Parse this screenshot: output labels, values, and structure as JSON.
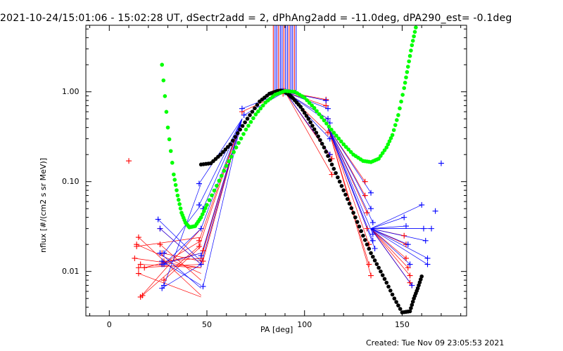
{
  "chart_data": {
    "type": "scatter",
    "title": "2021-10-24/15:01:06 - 15:02:28 UT, dSectr2add = 2, dPhAng2add = -11.0deg, dPA290_est= -0.1deg",
    "xlabel": "PA [deg]",
    "ylabel": "nflux [#/(cm2 s sr MeV)]",
    "xlim": [
      -12,
      183
    ],
    "ylim": [
      0.0032,
      5.5
    ],
    "yscale": "log",
    "grid": false,
    "x_ticks": [
      0,
      50,
      100,
      150
    ],
    "y_ticks": [
      0.01,
      0.1,
      1.0
    ],
    "y_tick_labels": [
      "0.01",
      "0.10",
      "1.00"
    ],
    "colors": {
      "red": "#ff0000",
      "blue": "#0000ff",
      "black": "#000000",
      "green": "#00ff00"
    },
    "series": [
      {
        "color": "red",
        "marker": "plus",
        "x": [
          10,
          13,
          14,
          14,
          15,
          15,
          15,
          16,
          16,
          17,
          18,
          26,
          26,
          27,
          27,
          28,
          28,
          46,
          46,
          47,
          47,
          48,
          48,
          68,
          88,
          89,
          90,
          91,
          92,
          111,
          111,
          112,
          112,
          113,
          114,
          114,
          131,
          131,
          132,
          132,
          133,
          133,
          134,
          151,
          152,
          152,
          153,
          154,
          154,
          155
        ],
        "y": [
          0.17,
          0.014,
          0.02,
          0.019,
          0.011,
          0.0095,
          0.024,
          0.012,
          0.0052,
          0.0054,
          0.011,
          0.03,
          0.02,
          0.016,
          0.012,
          0.008,
          0.013,
          0.022,
          0.019,
          0.014,
          0.012,
          0.017,
          0.013,
          0.6,
          1.0,
          0.95,
          1.02,
          0.98,
          1.0,
          0.82,
          0.7,
          0.5,
          0.35,
          0.2,
          0.18,
          0.12,
          0.1,
          0.07,
          0.045,
          0.03,
          0.02,
          0.012,
          0.009,
          0.025,
          0.02,
          0.014,
          0.011,
          0.009,
          0.0075,
          0.007
        ]
      },
      {
        "color": "blue",
        "marker": "plus",
        "x": [
          25,
          26,
          26,
          27,
          27,
          27,
          28,
          28,
          28,
          46,
          46,
          47,
          47,
          47,
          48,
          48,
          68,
          69,
          88,
          89,
          90,
          91,
          92,
          111,
          112,
          112,
          113,
          113,
          113,
          134,
          134,
          135,
          135,
          135,
          136,
          151,
          152,
          153,
          154,
          155,
          160,
          161,
          162,
          163,
          163,
          165,
          167,
          170
        ],
        "y": [
          0.038,
          0.03,
          0.016,
          0.013,
          0.012,
          0.0065,
          0.007,
          0.016,
          0.012,
          0.095,
          0.055,
          0.03,
          0.015,
          0.012,
          0.0068,
          0.05,
          0.65,
          0.55,
          1.0,
          1.02,
          0.98,
          1.0,
          0.99,
          0.8,
          0.65,
          0.5,
          0.45,
          0.3,
          0.2,
          0.075,
          0.05,
          0.035,
          0.026,
          0.022,
          0.018,
          0.04,
          0.032,
          0.02,
          0.012,
          0.007,
          0.055,
          0.03,
          0.022,
          0.014,
          0.012,
          0.03,
          0.047,
          0.16
        ]
      },
      {
        "color": "black",
        "marker": "dots",
        "x": [
          47,
          52,
          57,
          62,
          67,
          72,
          77,
          82,
          86,
          88,
          90,
          92,
          94,
          98,
          102,
          106,
          110,
          114,
          118,
          122,
          126,
          130,
          134,
          138,
          142,
          146,
          150,
          154,
          156,
          158,
          160
        ],
        "y": [
          0.155,
          0.16,
          0.2,
          0.26,
          0.38,
          0.55,
          0.78,
          0.95,
          1.02,
          1.03,
          1.0,
          0.93,
          0.85,
          0.68,
          0.5,
          0.35,
          0.24,
          0.155,
          0.1,
          0.064,
          0.04,
          0.025,
          0.016,
          0.011,
          0.0075,
          0.005,
          0.0035,
          0.0036,
          0.005,
          0.0065,
          0.0088
        ]
      },
      {
        "color": "green",
        "marker": "dots",
        "x": [
          27,
          30,
          33,
          35,
          37,
          39,
          41,
          44,
          47,
          50,
          55,
          60,
          65,
          70,
          75,
          80,
          85,
          90,
          95,
          100,
          105,
          110,
          115,
          120,
          125,
          130,
          134,
          138,
          142,
          145,
          148,
          151,
          153,
          155,
          157
        ],
        "y": [
          2.0,
          0.4,
          0.12,
          0.07,
          0.045,
          0.035,
          0.031,
          0.032,
          0.04,
          0.055,
          0.09,
          0.15,
          0.24,
          0.38,
          0.56,
          0.76,
          0.93,
          1.02,
          1.0,
          0.86,
          0.66,
          0.48,
          0.35,
          0.26,
          0.2,
          0.17,
          0.165,
          0.18,
          0.24,
          0.33,
          0.55,
          1.1,
          1.9,
          3.3,
          5.2
        ]
      }
    ]
  },
  "footer_text": "Created: Tue Nov 09 23:05:53 2021"
}
